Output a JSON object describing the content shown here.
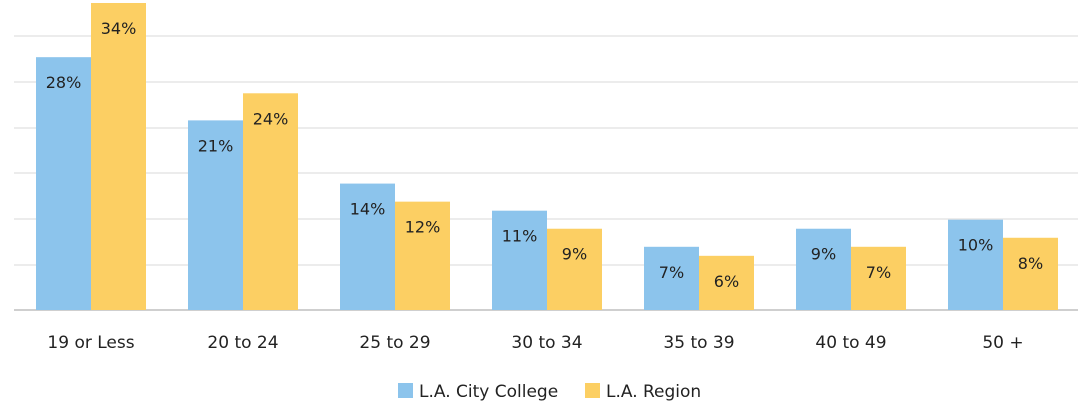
{
  "chart_data": {
    "type": "bar",
    "title": "",
    "xlabel": "",
    "ylabel": "",
    "ylim": [
      0,
      34
    ],
    "grid": true,
    "legend": "bottom-center",
    "categories": [
      "19 or Less",
      "20 to 24",
      "25 to 29",
      "30 to 34",
      "35 to 39",
      "40 to 49",
      "50 +"
    ],
    "series": [
      {
        "name": "L.A. City College",
        "color": "#8cc4ec",
        "values": [
          28,
          21,
          14,
          11,
          7,
          9,
          10
        ],
        "labels": [
          "28%",
          "21%",
          "14%",
          "11%",
          "7%",
          "9%",
          "10%"
        ]
      },
      {
        "name": "L.A. Region",
        "color": "#fccf63",
        "values": [
          34,
          24,
          12,
          9,
          6,
          7,
          8
        ],
        "labels": [
          "34%",
          "24%",
          "12%",
          "9%",
          "6%",
          "7%",
          "8%"
        ]
      }
    ]
  },
  "colors": {
    "grid": "#d9d9d9",
    "axis": "#bfbfbf",
    "text": "#222222"
  }
}
